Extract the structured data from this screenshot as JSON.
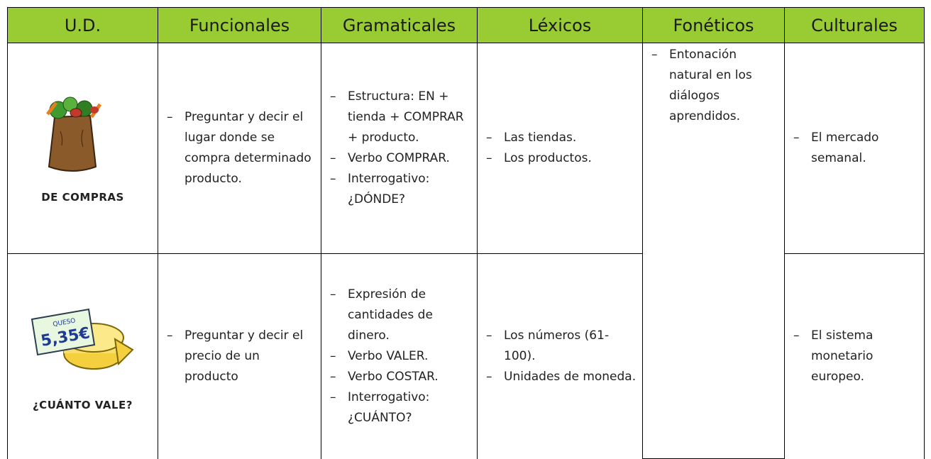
{
  "table": {
    "header": [
      "U.D.",
      "Funcionales",
      "Gramaticales",
      "Léxicos",
      "Fonéticos",
      "Culturales"
    ],
    "rows": [
      {
        "unit": "DE COMPRAS",
        "funcionales": [
          "Preguntar y decir el lugar donde se compra determinado producto."
        ],
        "gramaticales": [
          "Estructura: EN + tienda + COMPRAR + producto.",
          "Verbo COMPRAR.",
          "Interrogativo: ¿DÓNDE?"
        ],
        "lexicos": [
          "Las tiendas.",
          "Los productos."
        ],
        "foneticos": [
          "Entonación natural en los diálogos aprendidos."
        ],
        "culturales": [
          "El mercado semanal."
        ]
      },
      {
        "unit": "¿CUÁNTO VALE?",
        "price_tag": {
          "label": "QUESO",
          "price": "5,35€"
        },
        "funcionales": [
          "Preguntar y decir el precio de un producto"
        ],
        "gramaticales": [
          "Expresión de cantidades de dinero.",
          "Verbo VALER.",
          "Verbo COSTAR.",
          "Interrogativo: ¿CUÁNTO?"
        ],
        "lexicos": [
          "Los números (61-100).",
          "Unidades de moneda."
        ],
        "culturales": [
          "El sistema monetario europeo."
        ]
      }
    ]
  }
}
